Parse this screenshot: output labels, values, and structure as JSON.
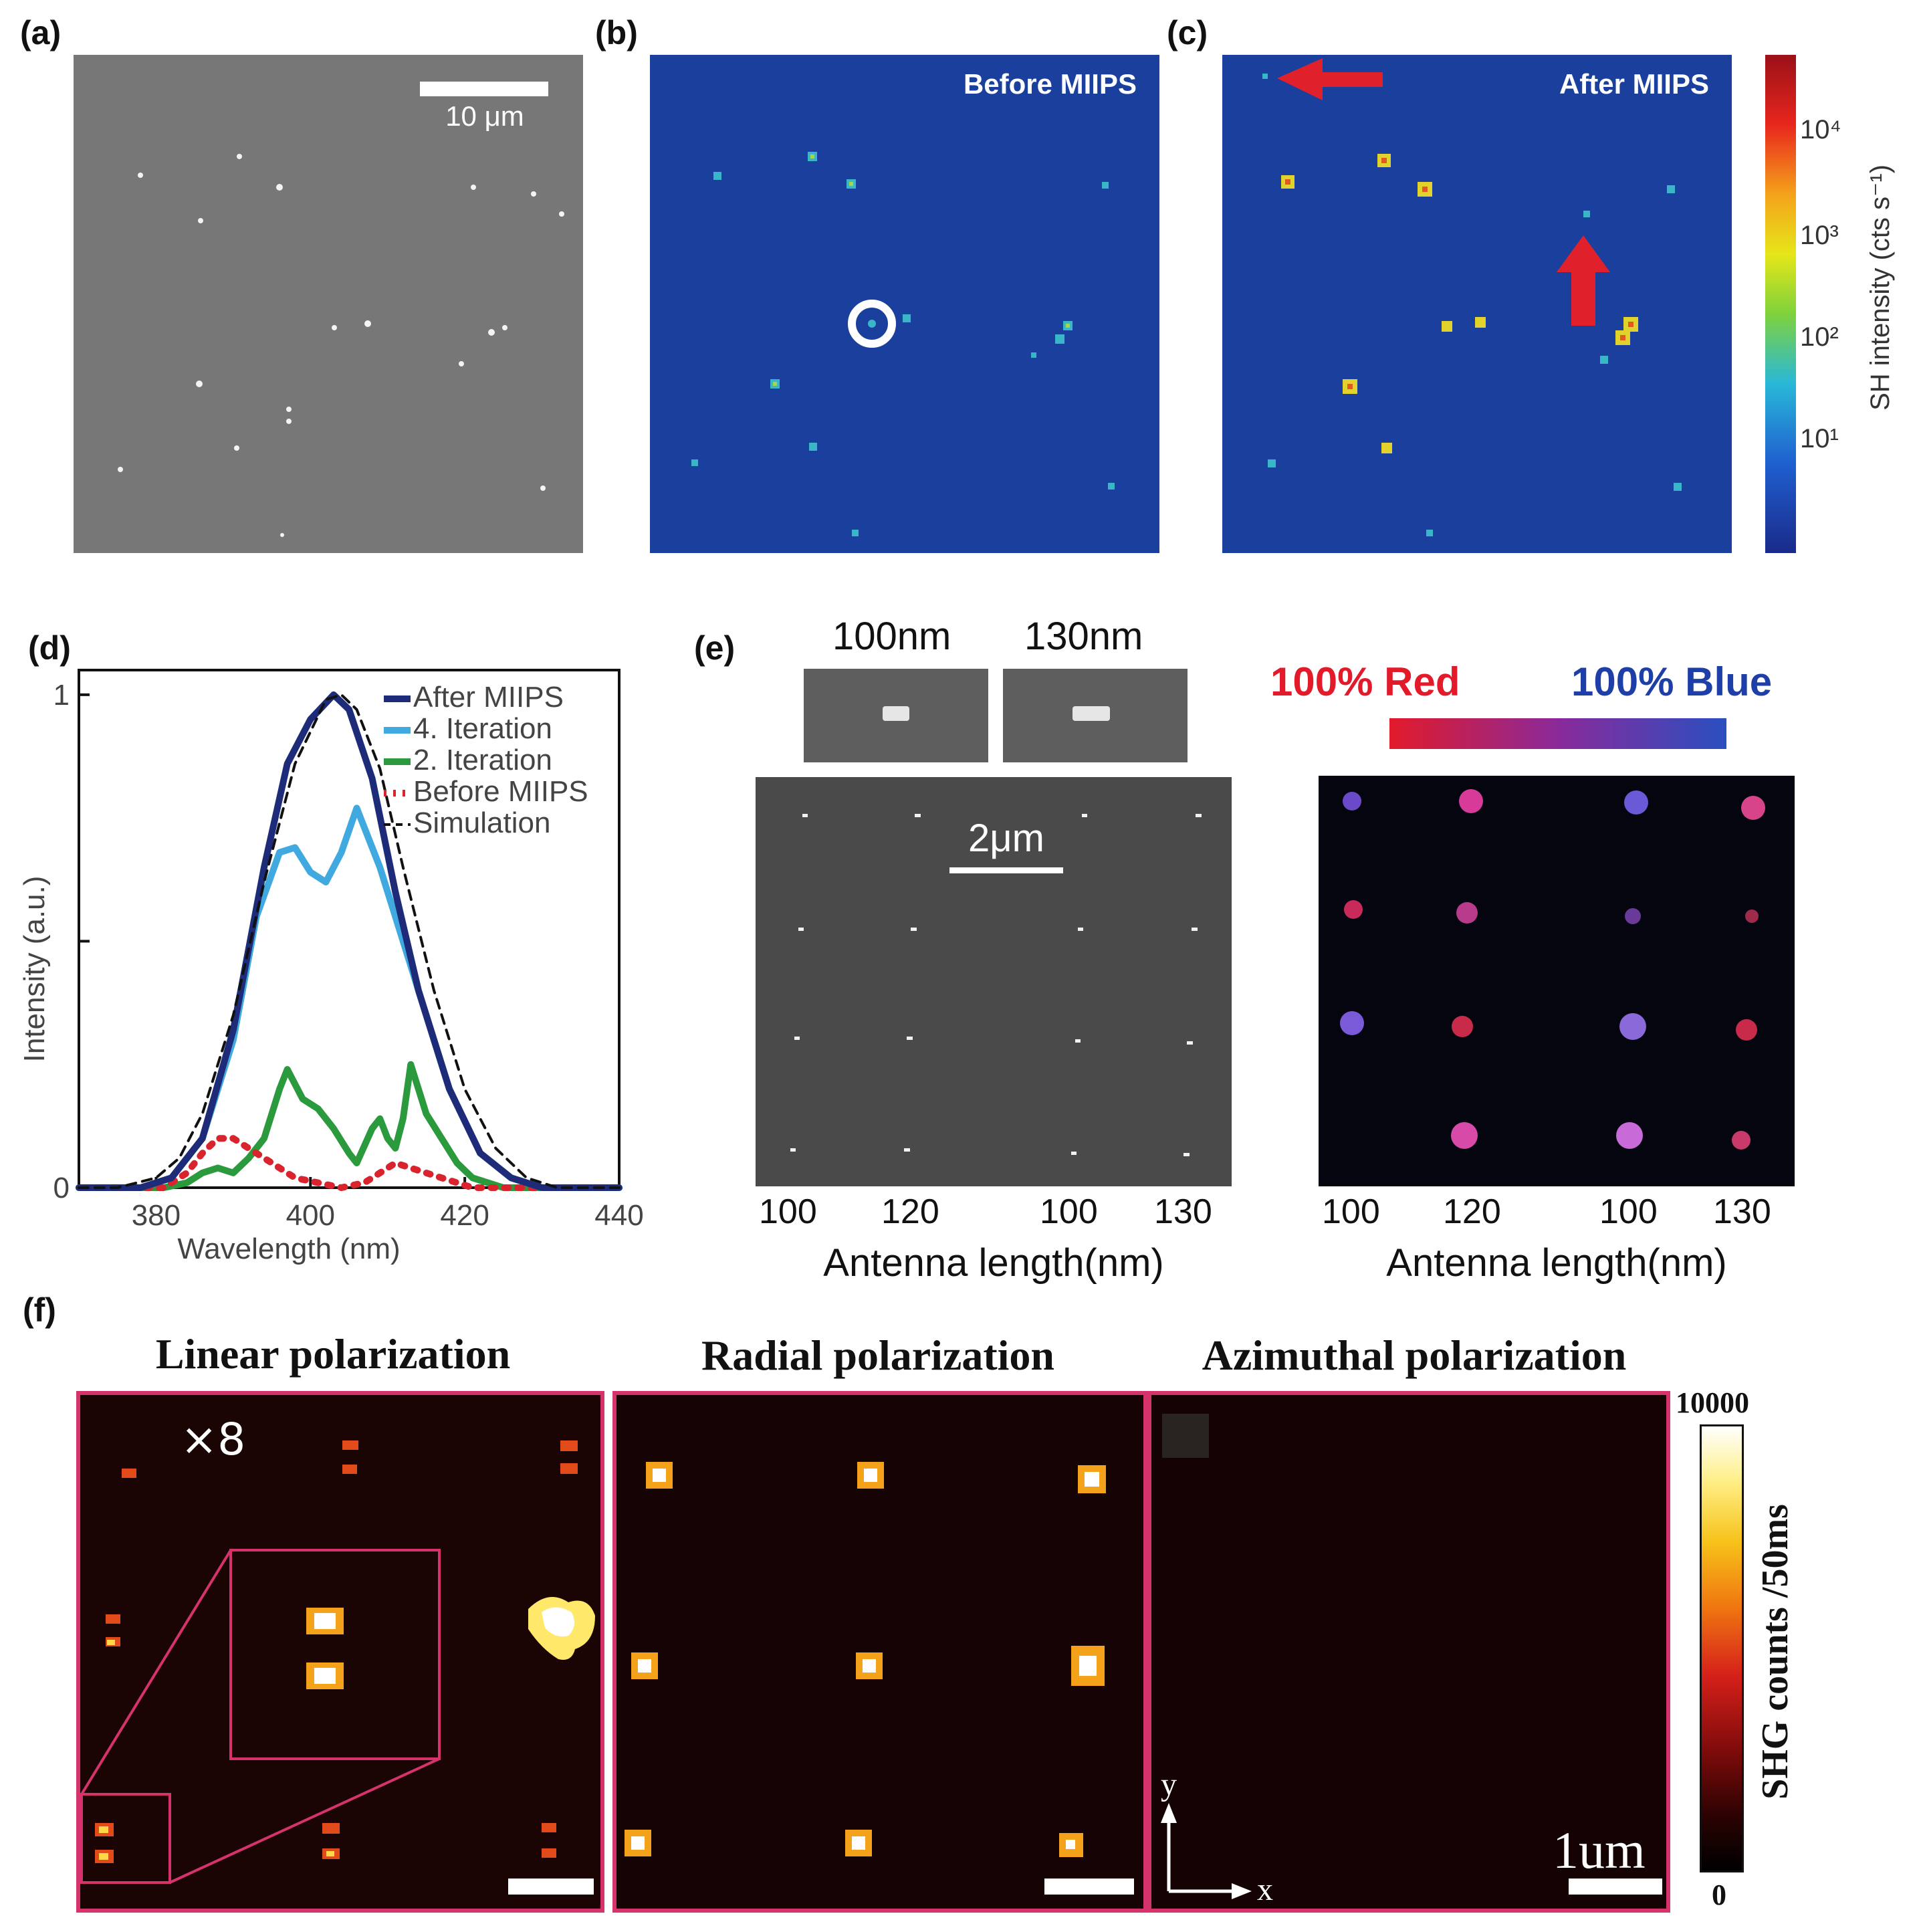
{
  "panels": {
    "a": {
      "label": "(a)",
      "scale_bar": "10 μm"
    },
    "b": {
      "label": "(b)",
      "title": "Before MIIPS"
    },
    "c": {
      "label": "(c)",
      "title": "After MIIPS"
    },
    "colorbar_top": {
      "title": "SH intensity (cts s⁻¹)",
      "ticks": [
        "10⁴",
        "10³",
        "10²",
        "10¹"
      ],
      "colors": [
        "#9b1018",
        "#e8261d",
        "#f5a21b",
        "#e6e619",
        "#7fd23c",
        "#29b8d8",
        "#1f5fd0",
        "#1a2a8a"
      ]
    },
    "d": {
      "label": "(d)"
    },
    "e": {
      "label": "(e)",
      "sem_labels": [
        "100nm",
        "130nm"
      ],
      "scale_bar": "2μm",
      "tick_labels": [
        "100",
        "120",
        "100",
        "130"
      ],
      "xlabel": "Antenna length(nm)",
      "color_left": "100% Red",
      "color_right": "100% Blue",
      "red_color": "#e21a2a",
      "blue_color": "#1f3fa8"
    },
    "f": {
      "label": "(f)",
      "titles": [
        "Linear polarization",
        "Radial polarization",
        "Azimuthal polarization"
      ],
      "magnification": "×8",
      "scale_label": "1um",
      "axis_x": "x",
      "axis_y": "y",
      "colorbar_max": "10000",
      "colorbar_min": "0",
      "colorbar_title": "SHG counts /50ms",
      "frame_color": "#d6336c"
    }
  },
  "chart_data": {
    "type": "line",
    "title": "",
    "xlabel": "Wavelength (nm)",
    "ylabel": "Intensity (a.u.)",
    "xlim": [
      370,
      440
    ],
    "ylim": [
      0,
      1.05
    ],
    "xticks": [
      380,
      400,
      420,
      440
    ],
    "yticks": [
      0,
      1
    ],
    "ytick_labels": [
      "0",
      "1"
    ],
    "legend": "top-right",
    "series": [
      {
        "name": "After MIIPS",
        "color": "#1d2b78",
        "style": "solid",
        "x": [
          370,
          378,
          382,
          386,
          390,
          394,
          397,
          400,
          403,
          405,
          408,
          411,
          414,
          418,
          422,
          426,
          430,
          440
        ],
        "y": [
          0,
          0,
          0.02,
          0.1,
          0.32,
          0.65,
          0.86,
          0.95,
          1.0,
          0.97,
          0.83,
          0.6,
          0.4,
          0.2,
          0.07,
          0.02,
          0,
          0
        ]
      },
      {
        "name": "4. Iteration",
        "color": "#3fa9e0",
        "style": "solid",
        "x": [
          370,
          378,
          382,
          386,
          390,
          393,
          396,
          398,
          400,
          402,
          404,
          406,
          409,
          412,
          415,
          418,
          422,
          426,
          430,
          440
        ],
        "y": [
          0,
          0,
          0.02,
          0.1,
          0.3,
          0.55,
          0.68,
          0.69,
          0.64,
          0.62,
          0.68,
          0.77,
          0.65,
          0.5,
          0.35,
          0.2,
          0.07,
          0.02,
          0,
          0
        ]
      },
      {
        "name": "2. Iteration",
        "color": "#2a9a3c",
        "style": "solid",
        "x": [
          370,
          381,
          384,
          386,
          388,
          390,
          392,
          394,
          396,
          397,
          399,
          401,
          403,
          405,
          406,
          408,
          409,
          410,
          411,
          412,
          413,
          414,
          415,
          417,
          419,
          421,
          425,
          440
        ],
        "y": [
          0,
          0,
          0.01,
          0.03,
          0.04,
          0.03,
          0.06,
          0.1,
          0.2,
          0.24,
          0.18,
          0.16,
          0.12,
          0.07,
          0.05,
          0.12,
          0.14,
          0.1,
          0.08,
          0.14,
          0.25,
          0.2,
          0.15,
          0.1,
          0.05,
          0.02,
          0,
          0
        ]
      },
      {
        "name": "Before MIIPS",
        "color": "#d9232d",
        "style": "dotted",
        "x": [
          370,
          381,
          384,
          386,
          388,
          390,
          392,
          395,
          398,
          401,
          404,
          407,
          409,
          411,
          413,
          415,
          417,
          419,
          421,
          424,
          440
        ],
        "y": [
          0,
          0,
          0.03,
          0.07,
          0.1,
          0.1,
          0.08,
          0.05,
          0.02,
          0.01,
          0.0,
          0.01,
          0.03,
          0.05,
          0.04,
          0.03,
          0.02,
          0.01,
          0.0,
          0,
          0
        ]
      },
      {
        "name": "Simulation",
        "color": "#111111",
        "style": "dashed",
        "x": [
          370,
          375,
          380,
          383,
          386,
          390,
          394,
          398,
          402,
          404,
          406,
          409,
          412,
          416,
          420,
          424,
          428,
          432,
          440
        ],
        "y": [
          0,
          0,
          0.02,
          0.06,
          0.15,
          0.35,
          0.62,
          0.86,
          0.99,
          1.0,
          0.97,
          0.85,
          0.65,
          0.4,
          0.2,
          0.08,
          0.02,
          0,
          0
        ]
      }
    ]
  }
}
